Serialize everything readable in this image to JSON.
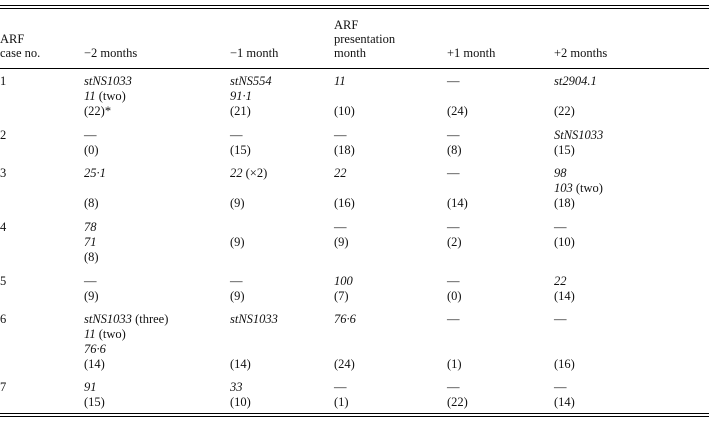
{
  "table": {
    "headers": {
      "case": [
        "ARF",
        "case no."
      ],
      "m2": "−2 months",
      "m1": "−1 month",
      "p0": [
        "ARF",
        "presentation",
        "month"
      ],
      "p1": "+1 month",
      "p2": "+2 months"
    },
    "rows": [
      {
        "case": "1",
        "m2": [
          {
            "t": "stNS1033",
            "i": true
          },
          {
            "t": "11",
            "i": true,
            "s": " (two)"
          },
          {
            "t": "(22)*"
          }
        ],
        "m1": [
          {
            "t": "stNS554",
            "i": true
          },
          {
            "t": "91·1",
            "i": true
          },
          {
            "t": "(21)"
          }
        ],
        "p0": [
          {
            "t": "11",
            "i": true
          },
          {
            "t": ""
          },
          {
            "t": "(10)"
          }
        ],
        "p1": [
          {
            "t": "—"
          },
          {
            "t": ""
          },
          {
            "t": "(24)"
          }
        ],
        "p2": [
          {
            "t": "st2904.1",
            "i": true
          },
          {
            "t": ""
          },
          {
            "t": "(22)"
          }
        ]
      },
      {
        "case": "2",
        "m2": [
          {
            "t": "—"
          },
          {
            "t": "(0)"
          }
        ],
        "m1": [
          {
            "t": "—"
          },
          {
            "t": "(15)"
          }
        ],
        "p0": [
          {
            "t": "—"
          },
          {
            "t": "(18)"
          }
        ],
        "p1": [
          {
            "t": "—"
          },
          {
            "t": "(8)"
          }
        ],
        "p2": [
          {
            "t": "StNS1033",
            "i": true
          },
          {
            "t": "(15)"
          }
        ]
      },
      {
        "case": "3",
        "m2": [
          {
            "t": "25·1",
            "i": true
          },
          {
            "t": ""
          },
          {
            "t": "(8)"
          }
        ],
        "m1": [
          {
            "t": "22",
            "i": true,
            "s": " (×2)"
          },
          {
            "t": ""
          },
          {
            "t": "(9)"
          }
        ],
        "p0": [
          {
            "t": "22",
            "i": true
          },
          {
            "t": ""
          },
          {
            "t": "(16)"
          }
        ],
        "p1": [
          {
            "t": "—"
          },
          {
            "t": ""
          },
          {
            "t": "(14)"
          }
        ],
        "p2": [
          {
            "t": "98",
            "i": true
          },
          {
            "t": "103",
            "i": true,
            "s": " (two)"
          },
          {
            "t": "(18)"
          }
        ]
      },
      {
        "case": "4",
        "m2": [
          {
            "t": "78",
            "i": true
          },
          {
            "t": "71",
            "i": true
          },
          {
            "t": "(8)"
          }
        ],
        "m1": [
          {
            "t": ""
          },
          {
            "t": "(9)"
          }
        ],
        "p0": [
          {
            "t": "—"
          },
          {
            "t": "(9)"
          }
        ],
        "p1": [
          {
            "t": "—"
          },
          {
            "t": "(2)"
          }
        ],
        "p2": [
          {
            "t": "—"
          },
          {
            "t": "(10)"
          }
        ]
      },
      {
        "case": "5",
        "m2": [
          {
            "t": "—"
          },
          {
            "t": "(9)"
          }
        ],
        "m1": [
          {
            "t": "—"
          },
          {
            "t": "(9)"
          }
        ],
        "p0": [
          {
            "t": "100",
            "i": true
          },
          {
            "t": "(7)"
          }
        ],
        "p1": [
          {
            "t": "—"
          },
          {
            "t": "(0)"
          }
        ],
        "p2": [
          {
            "t": "22",
            "i": true
          },
          {
            "t": "(14)"
          }
        ]
      },
      {
        "case": "6",
        "m2": [
          {
            "t": "stNS1033",
            "i": true,
            "s": " (three)"
          },
          {
            "t": "11",
            "i": true,
            "s": " (two)"
          },
          {
            "t": "76·6",
            "i": true
          },
          {
            "t": "(14)"
          }
        ],
        "m1": [
          {
            "t": "stNS1033",
            "i": true
          },
          {
            "t": ""
          },
          {
            "t": ""
          },
          {
            "t": "(14)"
          }
        ],
        "p0": [
          {
            "t": "76·6",
            "i": true
          },
          {
            "t": ""
          },
          {
            "t": ""
          },
          {
            "t": "(24)"
          }
        ],
        "p1": [
          {
            "t": "—"
          },
          {
            "t": ""
          },
          {
            "t": ""
          },
          {
            "t": "(1)"
          }
        ],
        "p2": [
          {
            "t": "—"
          },
          {
            "t": ""
          },
          {
            "t": ""
          },
          {
            "t": "(16)"
          }
        ]
      },
      {
        "case": "7",
        "m2": [
          {
            "t": "91",
            "i": true
          },
          {
            "t": "(15)"
          }
        ],
        "m1": [
          {
            "t": "33",
            "i": true
          },
          {
            "t": "(10)"
          }
        ],
        "p0": [
          {
            "t": "—"
          },
          {
            "t": "(1)"
          }
        ],
        "p1": [
          {
            "t": "—"
          },
          {
            "t": "(22)"
          }
        ],
        "p2": [
          {
            "t": "—"
          },
          {
            "t": "(14)"
          }
        ]
      }
    ]
  }
}
